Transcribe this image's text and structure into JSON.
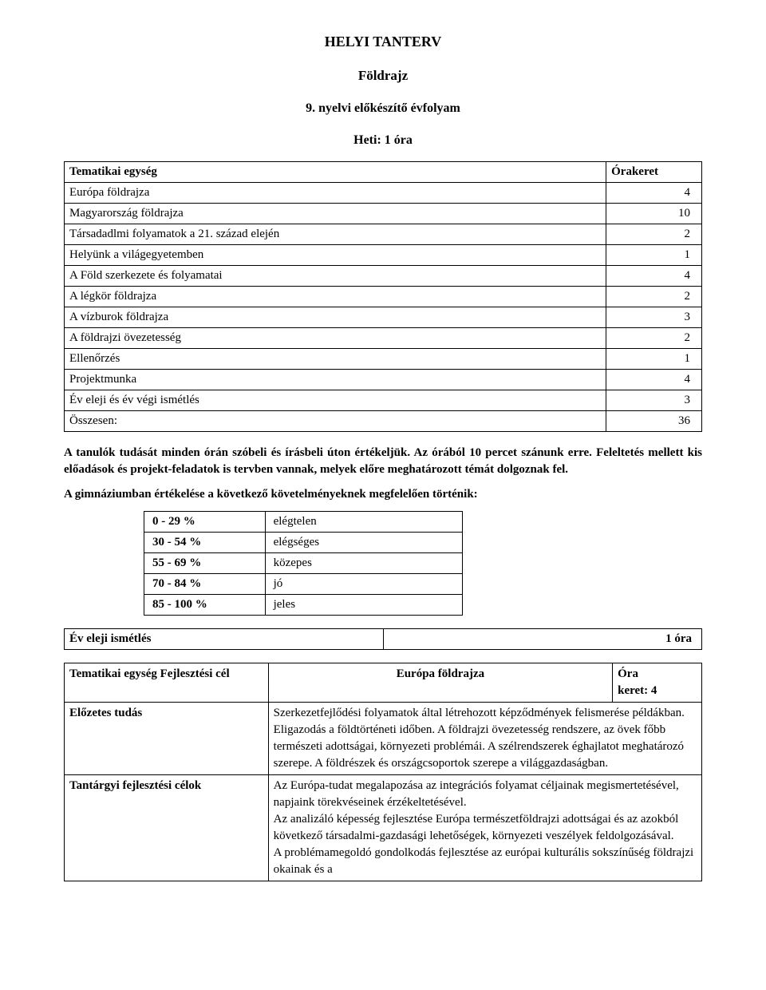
{
  "page": {
    "main_title": "HELYI TANTERV",
    "subject": "Földrajz",
    "grade_line": "9. nyelvi előkészítő évfolyam",
    "hours_line": "Heti: 1 óra"
  },
  "overview": {
    "header_left": "Tematikai egység",
    "header_right": "Órakeret",
    "rows": [
      {
        "label": "Európa földrajza",
        "value": "4"
      },
      {
        "label": "Magyarország földrajza",
        "value": "10"
      },
      {
        "label": "Társadadlmi folyamatok a 21. század elején",
        "value": "2"
      },
      {
        "label": "Helyünk a világegyetemben",
        "value": "1"
      },
      {
        "label": "A Föld szerkezete és folyamatai",
        "value": "4"
      },
      {
        "label": "A légkör földrajza",
        "value": "2"
      },
      {
        "label": "A vízburok földrajza",
        "value": "3"
      },
      {
        "label": "A földrajzi övezetesség",
        "value": "2"
      },
      {
        "label": "Ellenőrzés",
        "value": "1"
      },
      {
        "label": "Projektmunka",
        "value": "4"
      },
      {
        "label": "Év eleji és év végi ismétlés",
        "value": "3"
      },
      {
        "label": "Összesen:",
        "value": "36"
      }
    ]
  },
  "paragraphs": {
    "p1": "A tanulók tudását minden órán szóbeli és írásbeli úton értékeljük. Az órából 10 percet szánunk erre. Feleltetés mellett kis előadások és projekt-feladatok is tervben vannak, melyek előre meghatározott témát dolgoznak fel.",
    "p2": "A gimnáziumban értékelése a következő követelményeknek megfelelően történik:"
  },
  "grading": {
    "rows": [
      {
        "range": "0 - 29 %",
        "label": "elégtelen"
      },
      {
        "range": "30 - 54 %",
        "label": "elégséges"
      },
      {
        "range": "55 - 69 %",
        "label": "közepes"
      },
      {
        "range": "70 - 84 %",
        "label": "jó"
      },
      {
        "range": "85 - 100 %",
        "label": "jeles"
      }
    ]
  },
  "single_row": {
    "left": "Év eleji ismétlés",
    "right": "1 óra"
  },
  "unit": {
    "row1_left": "Tematikai egység Fejlesztési cél",
    "row1_center": "Európa földrajza",
    "row1_right_l1": "Óra",
    "row1_right_l2": "keret:  4",
    "row2_label": "Előzetes tudás",
    "row2_text": "Szerkezetfejlődési folyamatok által létrehozott képződmények felismerése példákban. Eligazodás a földtörténeti időben. A földrajzi övezetesség rendszere, az övek főbb természeti adottságai, környezeti problémái. A szélrendszerek éghajlatot meghatározó szerepe. A földrészek és országcsoportok szerepe a világgazdaságban.",
    "row3_label": "Tantárgyi fejlesztési célok",
    "row3_text_p1": "Az Európa-tudat megalapozása az integrációs folyamat céljainak megismertetésével, napjaink törekvéseinek érzékeltetésével.",
    "row3_text_p2": "Az analizáló képesség fejlesztése Európa természetföldrajzi adottságai és az azokból következő társadalmi-gazdasági lehetőségek, környezeti veszélyek feldolgozásával.",
    "row3_text_p3": "A problémamegoldó gondolkodás fejlesztése az európai kulturális sokszínűség földrajzi okainak és a"
  }
}
